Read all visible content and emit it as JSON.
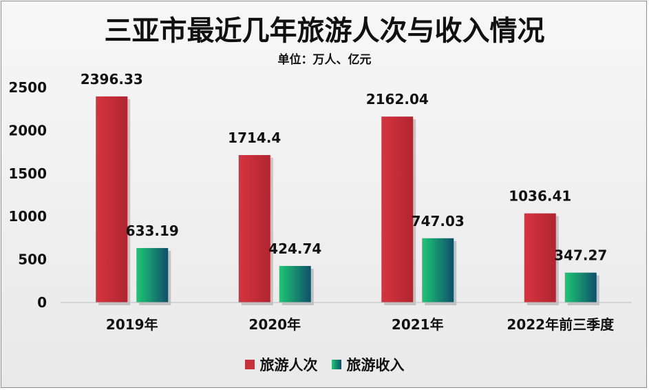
{
  "chart_data": {
    "type": "bar",
    "title": "三亚市最近几年旅游人次与收入情况",
    "subtitle": "单位：万人、亿元",
    "categories": [
      "2019年",
      "2020年",
      "2021年",
      "2022年前三季度"
    ],
    "series": [
      {
        "name": "旅游人次",
        "values": [
          2396.33,
          1714.4,
          2162.04,
          1036.41
        ],
        "labels": [
          "2396.33",
          "1714.4",
          "2162.04",
          "1036.41"
        ],
        "color": "#c8303a"
      },
      {
        "name": "旅游收入",
        "values": [
          633.19,
          424.74,
          747.03,
          347.27
        ],
        "labels": [
          "633.19",
          "424.74",
          "747.03",
          "347.27"
        ],
        "color": "#1aa86a"
      }
    ],
    "yticks": [
      "0",
      "500",
      "1000",
      "1500",
      "2000",
      "2500"
    ],
    "ylim": [
      0,
      2500
    ],
    "grid": false,
    "legend": "bottom"
  }
}
